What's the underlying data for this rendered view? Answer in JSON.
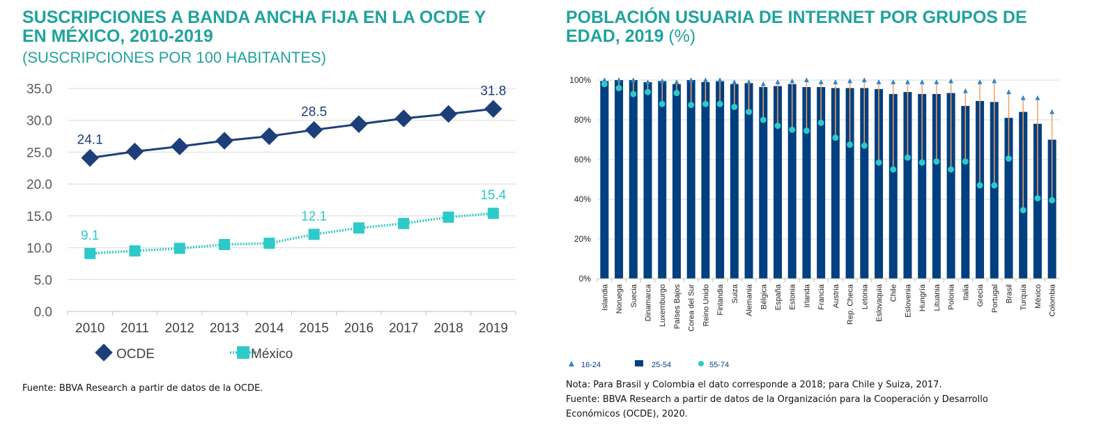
{
  "colors": {
    "title": "#1fa39b",
    "ocde": "#1c3f7a",
    "mexico": "#2ec9c9",
    "bars": "#003f80",
    "tri": "#2e86d0",
    "circ": "#2ec9c9",
    "range": "#f0a060"
  },
  "left": {
    "title_line1": "SUSCRIPCIONES A BANDA ANCHA FIJA EN LA OCDE Y",
    "title_line2": "EN MÉXICO, 2010-2019",
    "subtitle": "(SUSCRIPCIONES POR 100 HABITANTES)",
    "source": "Fuente: BBVA Research a partir de datos de la OCDE."
  },
  "right": {
    "title_line1": "POBLACIÓN USUARIA DE INTERNET POR GRUPOS DE",
    "title_line2": "EDAD, 2019",
    "title_suffix": " (%)",
    "note": "Nota: Para Brasil y Colombia el dato corresponde a 2018; para Chile y Suiza, 2017.",
    "source_line1": "Fuente: BBVA Research a partir de datos de la Organización para la Cooperación y Desarrollo",
    "source_line2": "Económicos (OCDE), 2020."
  },
  "chart_data": [
    {
      "type": "line",
      "x": [
        "2010",
        "2011",
        "2012",
        "2013",
        "2014",
        "2015",
        "2016",
        "2017",
        "2018",
        "2019"
      ],
      "ylim": [
        0,
        35
      ],
      "yticks": [
        "0.0",
        "5.0",
        "10.0",
        "15.0",
        "20.0",
        "25.0",
        "30.0",
        "35.0"
      ],
      "grid": true,
      "legend": "bottom-left",
      "series": [
        {
          "name": "OCDE",
          "values": [
            24.1,
            25.1,
            25.9,
            26.8,
            27.5,
            28.5,
            29.4,
            30.3,
            31.0,
            31.8
          ],
          "labels": {
            "0": "24.1",
            "5": "28.5",
            "9": "31.8"
          }
        },
        {
          "name": "México",
          "values": [
            9.1,
            9.5,
            9.9,
            10.5,
            10.7,
            12.1,
            13.1,
            13.8,
            14.8,
            15.4
          ],
          "labels": {
            "0": "9.1",
            "5": "12.1",
            "9": "15.4"
          }
        }
      ]
    },
    {
      "type": "bar",
      "categories": [
        "Islandia",
        "Noruega",
        "Suecia",
        "Dinamarca",
        "Luxemburgo",
        "Países Bajos",
        "Corea del Sur",
        "Reino Unido",
        "Finlandia",
        "Suiza",
        "Alemania",
        "Bélgica",
        "España",
        "Estonia",
        "Irlanda",
        "Francia",
        "Austria",
        "Rep. Checa",
        "Letonia",
        "Eslovaquia",
        "Chile",
        "Eslovenia",
        "Hungría",
        "Lituania",
        "Polonia",
        "Italia",
        "Grecia",
        "Portugal",
        "Brasil",
        "Turquía",
        "México",
        "Colombia"
      ],
      "ylim": [
        0,
        100
      ],
      "yticks": [
        "0%",
        "20%",
        "40%",
        "60%",
        "80%",
        "100%"
      ],
      "grid": true,
      "legend": "bottom-left",
      "series": [
        {
          "name": "16-24",
          "marker": "triangle",
          "values": [
            100,
            100,
            100,
            99,
            99.5,
            99,
            100,
            100,
            100,
            99,
            99,
            98,
            99,
            99.5,
            100,
            99,
            99,
            99.5,
            100,
            99,
            99,
            99,
            99,
            99,
            99.5,
            94.5,
            99,
            99.5,
            94,
            91,
            91,
            84
          ]
        },
        {
          "name": "25-54",
          "marker": "bar",
          "values": [
            99.5,
            100,
            100,
            99,
            99.5,
            98,
            100,
            99,
            99.5,
            98,
            98.5,
            96.5,
            97,
            98,
            96.5,
            96.5,
            96,
            96,
            96,
            95.5,
            93,
            94,
            93,
            93,
            93.5,
            87,
            89.5,
            89,
            81,
            84,
            78,
            70
          ]
        },
        {
          "name": "55-74",
          "marker": "circle",
          "values": [
            98,
            96,
            93,
            94,
            88,
            93.5,
            87.5,
            88,
            88,
            86.5,
            84,
            80,
            77,
            75,
            74.5,
            78.5,
            71,
            67.5,
            67,
            58.5,
            55,
            61,
            58.5,
            59,
            55,
            59,
            47,
            47,
            60.5,
            34.5,
            40.5,
            39.5
          ]
        }
      ]
    }
  ]
}
